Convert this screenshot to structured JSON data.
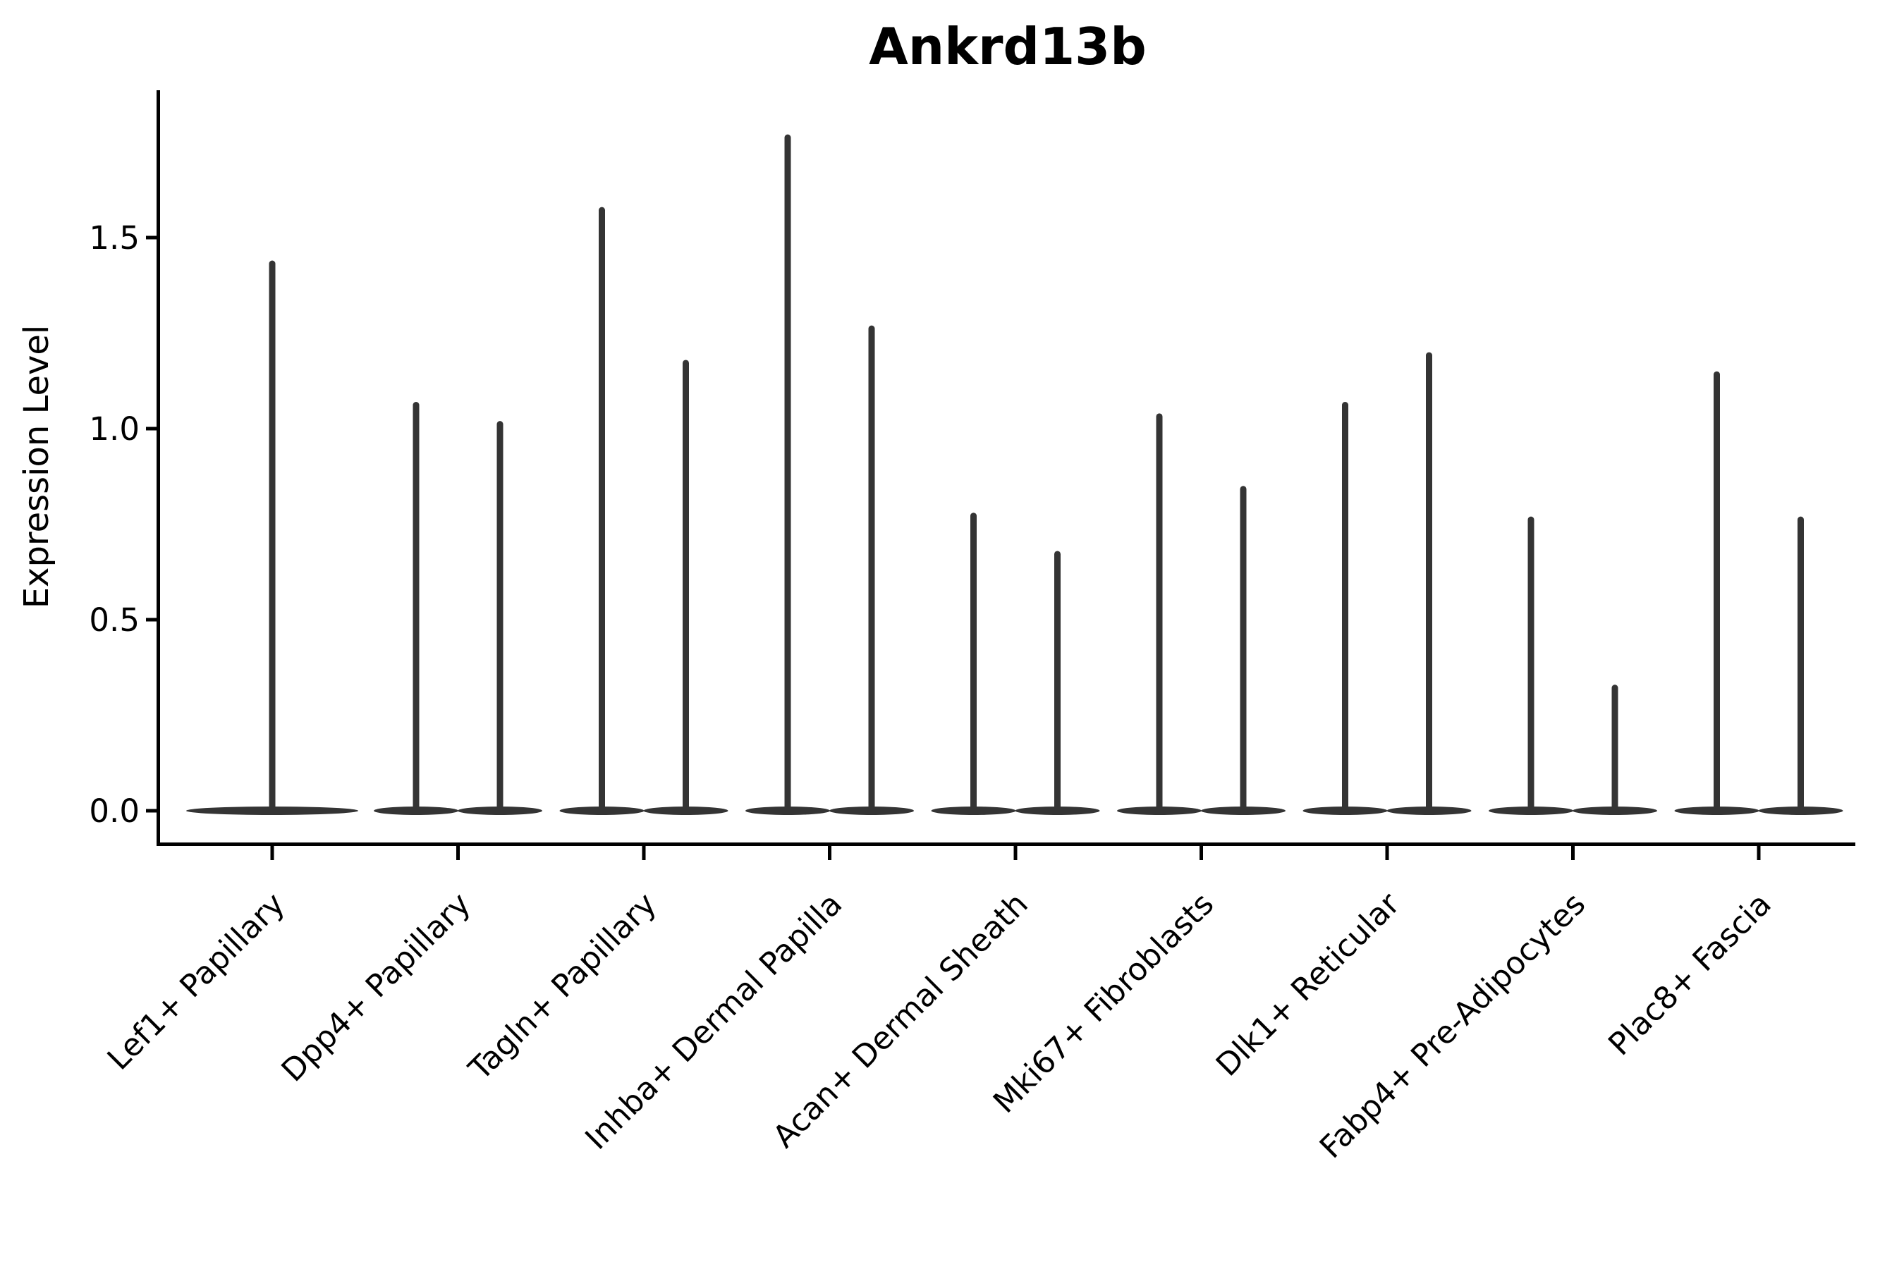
{
  "chart_data": {
    "type": "violin",
    "title": "Ankrd13b",
    "xlabel": "",
    "ylabel": "Expression Level",
    "ylim": [
      -0.09,
      1.88
    ],
    "yticks": [
      0.0,
      0.5,
      1.0,
      1.5
    ],
    "ytick_labels": [
      "0.0",
      "0.5",
      "1.0",
      "1.5"
    ],
    "grid": false,
    "legend": false,
    "x_tick_rotation": 45,
    "violin_color": "#343434",
    "axis_color": "#000000",
    "text_color": "#000000",
    "background": "#ffffff",
    "categories": [
      "Lef1+ Papillary",
      "Dpp4+ Papillary",
      "Tagln+ Papillary",
      "Inhba+ Dermal Papilla",
      "Acan+ Dermal Sheath",
      "Mki67+ Fibroblasts",
      "Dlk1+ Reticular",
      "Fabp4+ Pre-Adipocytes",
      "Plac8+ Fascia"
    ],
    "series": [
      {
        "category": "Lef1+ Papillary",
        "violin_max_values": [
          1.44
        ]
      },
      {
        "category": "Dpp4+ Papillary",
        "violin_max_values": [
          1.07,
          1.02
        ]
      },
      {
        "category": "Tagln+ Papillary",
        "violin_max_values": [
          1.58,
          1.18
        ]
      },
      {
        "category": "Inhba+ Dermal Papilla",
        "violin_max_values": [
          1.77,
          1.27
        ]
      },
      {
        "category": "Acan+ Dermal Sheath",
        "violin_max_values": [
          0.78,
          0.68
        ]
      },
      {
        "category": "Mki67+ Fibroblasts",
        "violin_max_values": [
          1.04,
          0.85
        ]
      },
      {
        "category": "Dlk1+ Reticular",
        "violin_max_values": [
          1.07,
          1.2
        ]
      },
      {
        "category": "Fabp4+ Pre-Adipocytes",
        "violin_max_values": [
          0.77,
          0.33
        ]
      },
      {
        "category": "Plac8+ Fascia",
        "violin_max_values": [
          1.15,
          0.77
        ]
      }
    ]
  }
}
